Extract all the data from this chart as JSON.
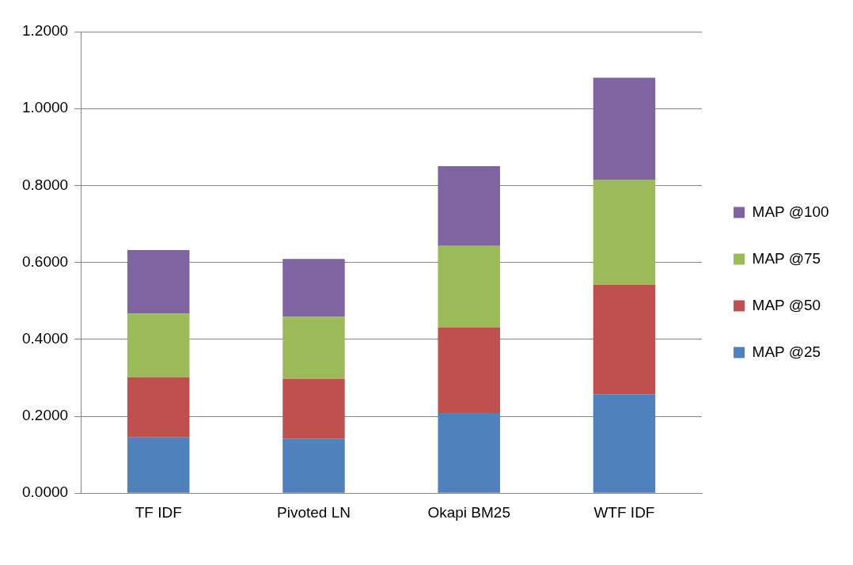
{
  "chart_data": {
    "type": "bar",
    "stacked": true,
    "categories": [
      "TF IDF",
      "Pivoted LN",
      "Okapi BM25",
      "WTF IDF"
    ],
    "series": [
      {
        "name": "MAP @25",
        "color": "#4f81bd",
        "values": [
          0.145,
          0.141,
          0.208,
          0.257
        ]
      },
      {
        "name": "MAP @50",
        "color": "#c0504d",
        "values": [
          0.156,
          0.156,
          0.223,
          0.285
        ]
      },
      {
        "name": "MAP @75",
        "color": "#9bbb59",
        "values": [
          0.166,
          0.161,
          0.212,
          0.273
        ]
      },
      {
        "name": "MAP @100",
        "color": "#8064a2",
        "values": [
          0.165,
          0.151,
          0.207,
          0.265
        ]
      }
    ],
    "ylim": [
      0,
      1.2
    ],
    "yticks": [
      {
        "value": 0,
        "label": "0.0000"
      },
      {
        "value": 0.2,
        "label": "0.2000"
      },
      {
        "value": 0.4,
        "label": "0.4000"
      },
      {
        "value": 0.6,
        "label": "0.6000"
      },
      {
        "value": 0.8,
        "label": "0.8000"
      },
      {
        "value": 1,
        "label": "1.0000"
      },
      {
        "value": 1.2,
        "label": "1.2000"
      }
    ],
    "grid": "y",
    "legend": "right"
  }
}
